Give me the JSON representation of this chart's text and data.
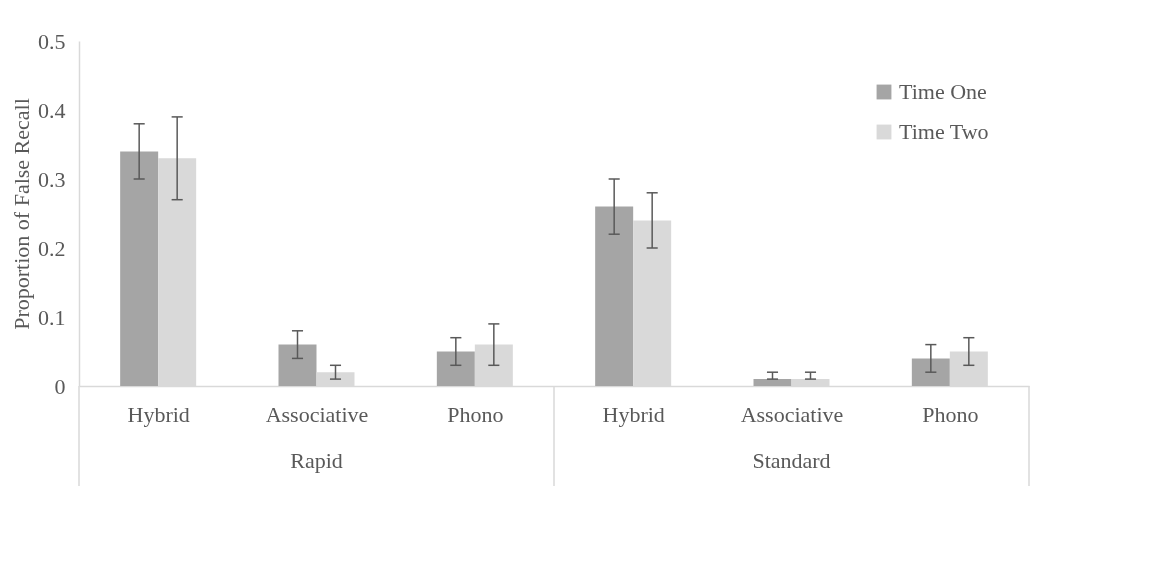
{
  "chart_data": {
    "type": "bar",
    "ylabel": "Proportion of False Recall",
    "categories": [
      "Hybrid",
      "Associative",
      "Phono",
      "Hybrid",
      "Associative",
      "Phono"
    ],
    "annotations": [
      "Rapid",
      "Standard"
    ],
    "series": [
      {
        "name": "Time One",
        "color": "#a5a5a5",
        "values": [
          0.34,
          0.06,
          0.05,
          0.26,
          0.01,
          0.04
        ],
        "errors": [
          0.04,
          0.02,
          0.02,
          0.04,
          [
            0.01,
            0.02
          ],
          0.02
        ]
      },
      {
        "name": "Time Two",
        "color": "#d9d9d9",
        "values": [
          0.33,
          0.02,
          0.06,
          0.24,
          0.01,
          0.05
        ],
        "errors": [
          0.06,
          0.01,
          0.03,
          0.04,
          [
            0.01,
            0.02
          ],
          0.02
        ]
      }
    ],
    "ylim": [
      0,
      0.5
    ],
    "yticks": [
      0,
      0.1,
      0.2,
      0.3,
      0.4,
      0.5
    ],
    "grid": false,
    "legend": "top right"
  }
}
